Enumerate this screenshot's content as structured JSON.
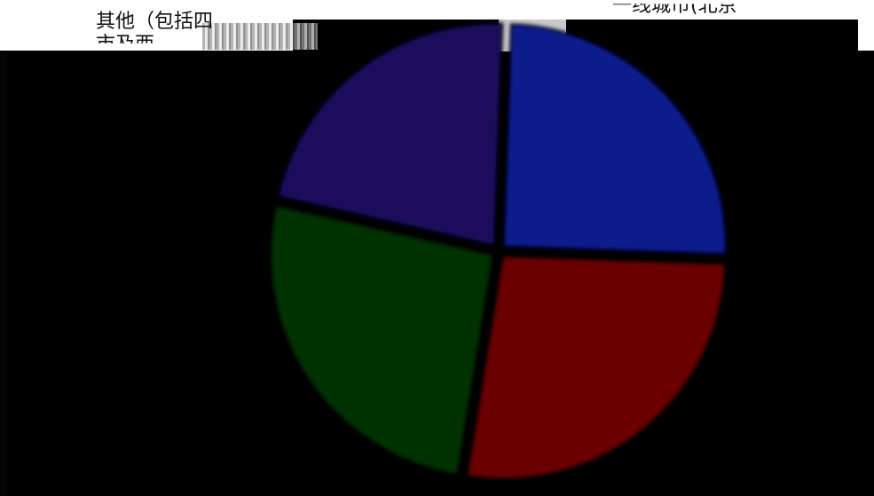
{
  "chart_data": {
    "type": "pie",
    "slices": [
      {
        "label": "一线城市(北京",
        "value": 25,
        "color": "#071a8c"
      },
      {
        "label": "",
        "value": 27,
        "color": "#6b0000"
      },
      {
        "label": "",
        "value": 26,
        "color": "#053305"
      },
      {
        "label": "其他（包括四线城市及西部地区）",
        "value": 22,
        "color": "#1c0a5c"
      }
    ],
    "labels_visible": {
      "other_line1": "其他（包括四",
      "other_line2": "市及西",
      "tier1": "一线城市(北京"
    },
    "legend": "none",
    "grid": false
  }
}
